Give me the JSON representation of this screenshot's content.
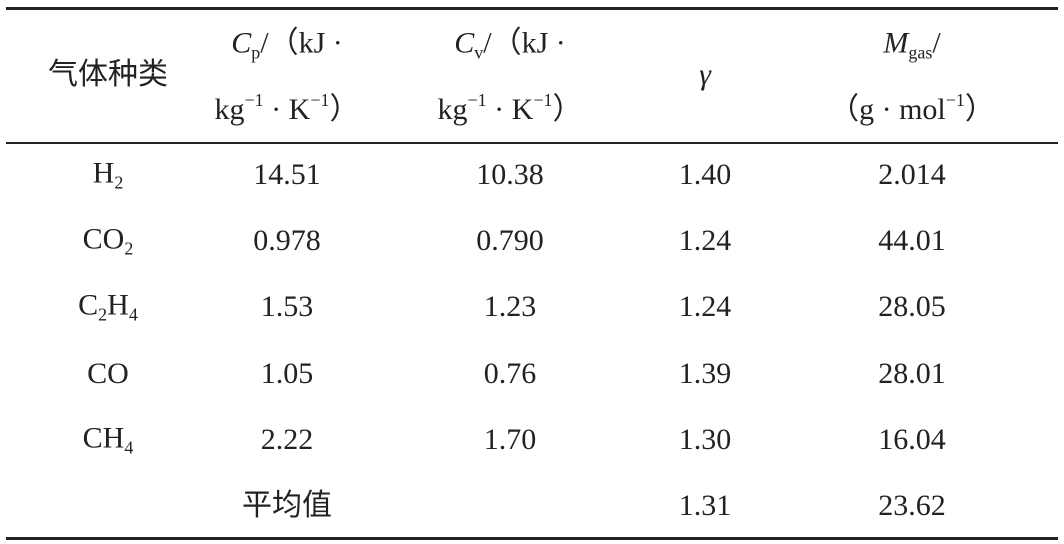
{
  "table": {
    "header": [
      [
        [
          {
            "text": "气体种类"
          }
        ]
      ],
      [
        [
          {
            "text": "C",
            "italic": true
          },
          {
            "text": "p",
            "sub": true
          },
          {
            "text": "/（kJ ·"
          }
        ],
        [
          {
            "text": "kg"
          },
          {
            "text": "−1",
            "sup": true
          },
          {
            "text": " · K"
          },
          {
            "text": "−1",
            "sup": true
          },
          {
            "text": "）"
          }
        ]
      ],
      [
        [
          {
            "text": "C",
            "italic": true
          },
          {
            "text": "v",
            "sub": true
          },
          {
            "text": "/（kJ ·"
          }
        ],
        [
          {
            "text": "kg"
          },
          {
            "text": "−1",
            "sup": true
          },
          {
            "text": " · K"
          },
          {
            "text": "−1",
            "sup": true
          },
          {
            "text": "）"
          }
        ]
      ],
      [
        [
          {
            "text": "γ",
            "italic": true
          }
        ]
      ],
      [
        [
          {
            "text": "M",
            "italic": true
          },
          {
            "text": "gas",
            "sub": true
          },
          {
            "text": "/"
          }
        ],
        [
          {
            "text": "（g · mol"
          },
          {
            "text": "−1",
            "sup": true
          },
          {
            "text": "）"
          }
        ]
      ]
    ],
    "rows": [
      [
        [
          {
            "text": "H"
          },
          {
            "text": "2",
            "sub": true
          }
        ],
        "14.51",
        "10.38",
        "1.40",
        "2.014"
      ],
      [
        [
          {
            "text": "CO"
          },
          {
            "text": "2",
            "sub": true
          }
        ],
        "0.978",
        "0.790",
        "1.24",
        "44.01"
      ],
      [
        [
          {
            "text": "C"
          },
          {
            "text": "2",
            "sub": true
          },
          {
            "text": "H"
          },
          {
            "text": "4",
            "sub": true
          }
        ],
        "1.53",
        "1.23",
        "1.24",
        "28.05"
      ],
      [
        [
          {
            "text": "CO"
          }
        ],
        "1.05",
        "0.76",
        "1.39",
        "28.01"
      ],
      [
        [
          {
            "text": "CH"
          },
          {
            "text": "4",
            "sub": true
          }
        ],
        "2.22",
        "1.70",
        "1.30",
        "16.04"
      ],
      [
        null,
        "平均值",
        null,
        "1.31",
        "23.62"
      ]
    ]
  }
}
